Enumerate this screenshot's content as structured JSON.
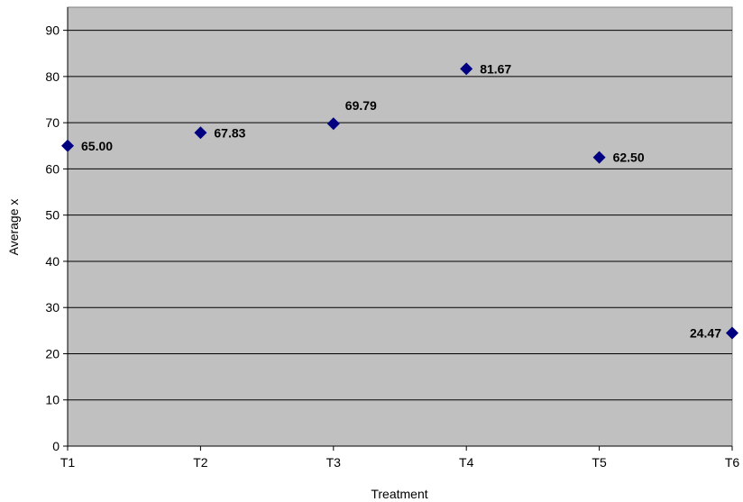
{
  "chart_data": {
    "type": "scatter",
    "categories": [
      "T1",
      "T2",
      "T3",
      "T4",
      "T5",
      "T6"
    ],
    "series": [
      {
        "values": [
          65.0,
          67.83,
          69.79,
          81.67,
          62.5,
          24.47
        ]
      }
    ],
    "data_labels": [
      "65.00",
      "67.83",
      "69.79",
      "81.67",
      "62.50",
      "24.47"
    ],
    "xlabel": "Treatment",
    "ylabel": "Average x",
    "ylim": [
      0,
      95
    ],
    "yticks": [
      0,
      10,
      20,
      30,
      40,
      50,
      60,
      70,
      80,
      90
    ],
    "grid": true,
    "legend": "none",
    "colors": {
      "plot_background": "#c0c0c0",
      "marker": "#000080",
      "gridline": "#000000"
    },
    "marker_shape": "diamond"
  }
}
